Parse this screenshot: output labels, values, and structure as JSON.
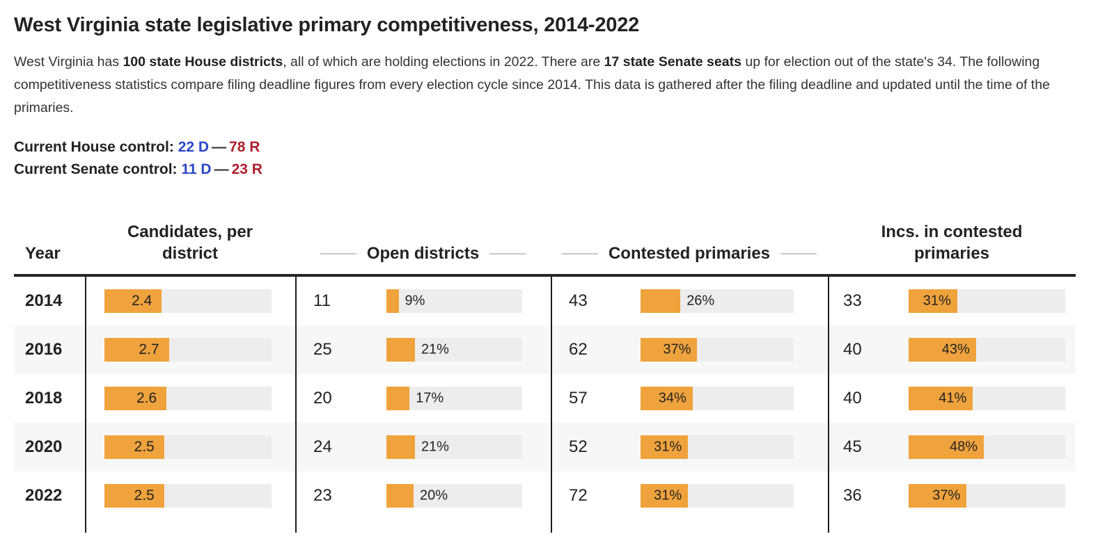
{
  "title": "West Virginia state legislative primary competitiveness, 2014-2022",
  "intro": {
    "seg1": "West Virginia has ",
    "seg2_bold": "100 state House districts",
    "seg3": ", all of which are holding elections in 2022. There are ",
    "seg4_bold": "17 state Senate seats",
    "seg5": " up for election out of the state's 34. The following competitiveness statistics compare filing deadline figures from every election cycle since 2014. This data is gathered after the filing deadline and updated until the time of the primaries."
  },
  "control_summary": {
    "house": {
      "label": "Current House control:",
      "dem": "22 D",
      "dash": "—",
      "rep": "78 R"
    },
    "senate": {
      "label": "Current Senate control:",
      "dem": "11 D",
      "dash": "—",
      "rep": "23 R"
    }
  },
  "table_headers": {
    "year": "Year",
    "candidates": "Candidates, per district",
    "open": "Open districts",
    "contested": "Contested primaries",
    "incs": "Incs. in contested primaries"
  },
  "colors": {
    "bar_orange": "#f0a33c",
    "bar_track_gray": "#ededed",
    "row_alt_gray": "#f7f7f7",
    "dem_blue": "#2b46c8",
    "rep_red": "#ad1f2c"
  },
  "chart_data": {
    "type": "table",
    "title": "West Virginia state legislative primary competitiveness, 2014-2022",
    "columns": [
      "Year",
      "Candidates, per district",
      "Open districts (count)",
      "Open districts (%)",
      "Contested primaries (count)",
      "Contested primaries (%)",
      "Incs. in contested primaries (count)",
      "Incs. in contested primaries (%)"
    ],
    "candidates_bar_axis_max": 7,
    "bar_color": "#f0a33c",
    "rows": [
      {
        "year": "2014",
        "candidates_per_district": 2.4,
        "open_districts": 11,
        "open_districts_pct": 9,
        "contested_primaries": 43,
        "contested_primaries_pct": 26,
        "incs_in_contested": 33,
        "incs_in_contested_pct": 31
      },
      {
        "year": "2016",
        "candidates_per_district": 2.7,
        "open_districts": 25,
        "open_districts_pct": 21,
        "contested_primaries": 62,
        "contested_primaries_pct": 37,
        "incs_in_contested": 40,
        "incs_in_contested_pct": 43
      },
      {
        "year": "2018",
        "candidates_per_district": 2.6,
        "open_districts": 20,
        "open_districts_pct": 17,
        "contested_primaries": 57,
        "contested_primaries_pct": 34,
        "incs_in_contested": 40,
        "incs_in_contested_pct": 41
      },
      {
        "year": "2020",
        "candidates_per_district": 2.5,
        "open_districts": 24,
        "open_districts_pct": 21,
        "contested_primaries": 52,
        "contested_primaries_pct": 31,
        "incs_in_contested": 45,
        "incs_in_contested_pct": 48
      },
      {
        "year": "2022",
        "candidates_per_district": 2.5,
        "open_districts": 23,
        "open_districts_pct": 20,
        "contested_primaries": 72,
        "contested_primaries_pct": 31,
        "incs_in_contested": 36,
        "incs_in_contested_pct": 37
      }
    ]
  }
}
